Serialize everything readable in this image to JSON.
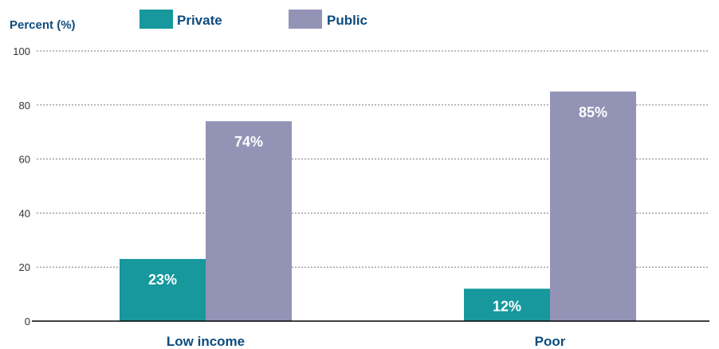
{
  "chart_data": {
    "type": "bar",
    "ylabel": "Percent (%)",
    "ylim": [
      0,
      100
    ],
    "yticks": [
      0,
      20,
      40,
      60,
      80,
      100
    ],
    "grid": true,
    "legend_position": "top",
    "categories": [
      "Low income",
      "Poor"
    ],
    "series": [
      {
        "name": "Private",
        "values": [
          23,
          12
        ],
        "labels": [
          "23%",
          "12%"
        ],
        "color": "#16989d"
      },
      {
        "name": "Public",
        "values": [
          74,
          85
        ],
        "labels": [
          "74%",
          "85%"
        ],
        "color": "#9393b6"
      }
    ],
    "colors": {
      "axis_text": "#0d4c7e",
      "tick_text": "#333333",
      "gridline": "#7a7a7a",
      "bar_label": "#ffffff"
    }
  }
}
